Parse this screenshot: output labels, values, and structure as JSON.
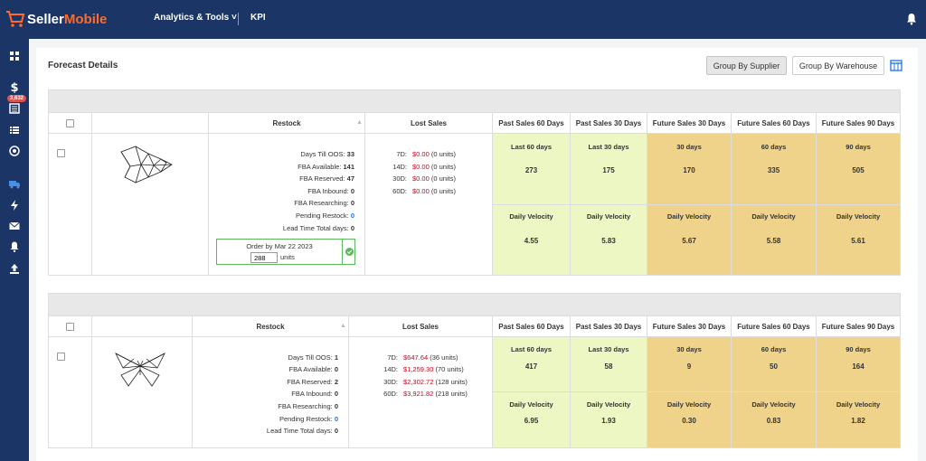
{
  "topbar": {
    "logo_seller": "Seller",
    "logo_mobile": "Mobile",
    "nav_analytics": "Analytics & Tools ˅",
    "nav_kpi": "KPI"
  },
  "sidebar": {
    "badge": "3,632",
    "icons": [
      "dashboard-icon",
      "dollar-icon",
      "list-alt-icon",
      "list-icon",
      "target-icon",
      "truck-icon",
      "bolt-icon",
      "envelope-icon",
      "bell-icon",
      "upload-icon"
    ]
  },
  "page": {
    "title": "Forecast Details",
    "group_by_supplier": "Group By Supplier",
    "group_by_warehouse": "Group By Warehouse"
  },
  "headers": {
    "restock": "Restock",
    "lost_sales": "Lost Sales",
    "past60": "Past Sales 60 Days",
    "past30": "Past Sales 30 Days",
    "fut30": "Future Sales 30 Days",
    "fut60": "Future Sales 60 Days",
    "fut90": "Future Sales 90 Days"
  },
  "colors": {
    "nav": "#1b3566",
    "green": "#ecf7c4",
    "orange": "#f0d38b",
    "red": "#d0021b",
    "blue": "#1a73e8",
    "accent": "#ff6b2b"
  },
  "products": [
    {
      "image": "fish-origami-icon",
      "restock": [
        {
          "label": "Days Till OOS:",
          "value": "33"
        },
        {
          "label": "FBA Available:",
          "value": "141"
        },
        {
          "label": "FBA Reserved:",
          "value": "47"
        },
        {
          "label": "FBA Inbound:",
          "value": "0"
        },
        {
          "label": "FBA Researching:",
          "value": "0"
        },
        {
          "label": "Pending Restock:",
          "value": "0"
        },
        {
          "label": "Lead Time Total days:",
          "value": "0"
        }
      ],
      "order": {
        "text": "Order by Mar 22 2023",
        "qty": "288",
        "units": "units"
      },
      "lost_sales": [
        {
          "period": "7D:",
          "amount": "$0.00",
          "units": "(0 units)"
        },
        {
          "period": "14D:",
          "amount": "$0.00",
          "units": "(0 units)"
        },
        {
          "period": "30D:",
          "amount": "$0.00",
          "units": "(0 units)"
        },
        {
          "period": "60D:",
          "amount": "$0.00",
          "units": "(0 units)"
        }
      ],
      "metrics": [
        {
          "label": "Last 60 days",
          "value": "273",
          "velocity_label": "Daily Velocity",
          "velocity": "4.55"
        },
        {
          "label": "Last 30 days",
          "value": "175",
          "velocity_label": "Daily Velocity",
          "velocity": "5.83"
        },
        {
          "label": "30 days",
          "value": "170",
          "velocity_label": "Daily Velocity",
          "velocity": "5.67"
        },
        {
          "label": "60 days",
          "value": "335",
          "velocity_label": "Daily Velocity",
          "velocity": "5.58"
        },
        {
          "label": "90 days",
          "value": "505",
          "velocity_label": "Daily Velocity",
          "velocity": "5.61"
        }
      ]
    },
    {
      "image": "butterfly-origami-icon",
      "restock": [
        {
          "label": "Days Till OOS:",
          "value": "1"
        },
        {
          "label": "FBA Available:",
          "value": "0"
        },
        {
          "label": "FBA Reserved:",
          "value": "2"
        },
        {
          "label": "FBA Inbound:",
          "value": "0"
        },
        {
          "label": "FBA Researching:",
          "value": "0"
        },
        {
          "label": "Pending Restock:",
          "value": "0"
        },
        {
          "label": "Lead Time Total days:",
          "value": "0"
        }
      ],
      "lost_sales": [
        {
          "period": "7D:",
          "amount": "$647.64",
          "units": "(36 units)"
        },
        {
          "period": "14D:",
          "amount": "$1,259.30",
          "units": "(70 units)"
        },
        {
          "period": "30D:",
          "amount": "$2,302.72",
          "units": "(128 units)"
        },
        {
          "period": "60D:",
          "amount": "$3,921.82",
          "units": "(218 units)"
        }
      ],
      "metrics": [
        {
          "label": "Last 60 days",
          "value": "417",
          "velocity_label": "Daily Velocity",
          "velocity": "6.95"
        },
        {
          "label": "Last 30 days",
          "value": "58",
          "velocity_label": "Daily Velocity",
          "velocity": "1.93"
        },
        {
          "label": "30 days",
          "value": "9",
          "velocity_label": "Daily Velocity",
          "velocity": "0.30"
        },
        {
          "label": "60 days",
          "value": "50",
          "velocity_label": "Daily Velocity",
          "velocity": "0.83"
        },
        {
          "label": "90 days",
          "value": "164",
          "velocity_label": "Daily Velocity",
          "velocity": "1.82"
        }
      ]
    }
  ]
}
